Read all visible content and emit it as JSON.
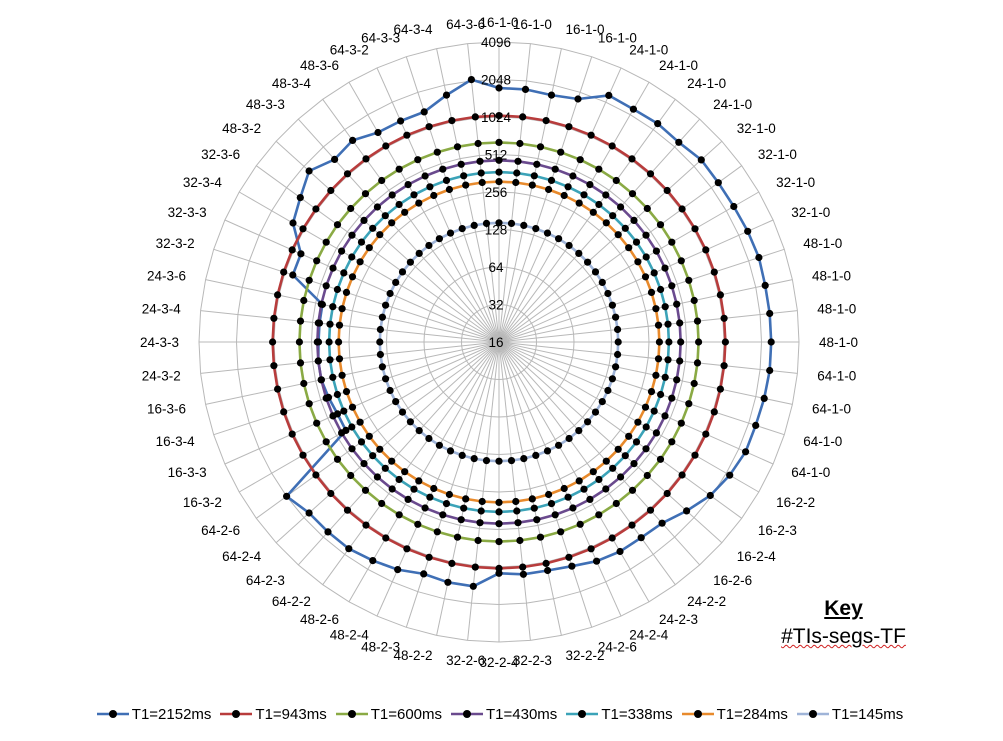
{
  "chart_data": {
    "type": "radar",
    "scale": "log2",
    "grid": true,
    "legend_position": "bottom",
    "radial_ticks": [
      16,
      32,
      64,
      128,
      256,
      512,
      1024,
      2048,
      4096
    ],
    "categories": [
      "16-1-0",
      "16-1-0",
      "16-1-0",
      "16-1-0",
      "24-1-0",
      "24-1-0",
      "24-1-0",
      "24-1-0",
      "32-1-0",
      "32-1-0",
      "32-1-0",
      "32-1-0",
      "48-1-0",
      "48-1-0",
      "48-1-0",
      "48-1-0",
      "64-1-0",
      "64-1-0",
      "64-1-0",
      "64-1-0",
      "16-2-2",
      "16-2-3",
      "16-2-4",
      "16-2-6",
      "24-2-2",
      "24-2-3",
      "24-2-4",
      "24-2-6",
      "32-2-2",
      "32-2-3",
      "32-2-4",
      "32-2-6",
      "48-2-2",
      "48-2-3",
      "48-2-4",
      "48-2-6",
      "64-2-2",
      "64-2-3",
      "64-2-4",
      "64-2-6",
      "16-3-2",
      "16-3-3",
      "16-3-4",
      "16-3-6",
      "24-3-2",
      "24-3-3",
      "24-3-4",
      "24-3-6",
      "32-3-2",
      "32-3-3",
      "32-3-4",
      "32-3-6",
      "48-3-2",
      "48-3-3",
      "48-3-4",
      "48-3-6",
      "64-3-2",
      "64-3-3",
      "64-3-4",
      "64-3-6"
    ],
    "series": [
      {
        "name": "T1=2152ms",
        "color": "#3f6fb5",
        "values": [
          1750,
          1750,
          1700,
          1800,
          2350,
          2300,
          2350,
          2300,
          2450,
          2400,
          2400,
          2450,
          2500,
          2450,
          2450,
          2450,
          2450,
          2400,
          2350,
          2350,
          2200,
          2000,
          1700,
          1450,
          1400,
          1400,
          1350,
          1250,
          1200,
          1200,
          1150,
          1500,
          1500,
          1450,
          1600,
          1700,
          1800,
          1800,
          1800,
          2050,
          420,
          420,
          440,
          460,
          460,
          450,
          450,
          450,
          880,
          880,
          1300,
          1500,
          1800,
          1500,
          1600,
          1400,
          1400,
          1400,
          1700,
          2100
        ]
      },
      {
        "name": "T1=943ms",
        "color": "#b83c3c",
        "values": [
          1050,
          1050,
          1050,
          1050,
          1050,
          1050,
          1050,
          1050,
          1050,
          1050,
          1050,
          1050,
          1050,
          1050,
          1050,
          1050,
          1050,
          1050,
          1050,
          1050,
          1050,
          1050,
          1050,
          1050,
          1050,
          1050,
          1050,
          1050,
          1050,
          1050,
          1050,
          1050,
          1050,
          1050,
          1050,
          1050,
          1050,
          1050,
          1050,
          1050,
          1050,
          1050,
          1050,
          1050,
          1050,
          1050,
          1050,
          1050,
          1050,
          1050,
          1050,
          1050,
          1050,
          1050,
          1050,
          1050,
          1050,
          1050,
          1050,
          1050
        ]
      },
      {
        "name": "T1=600ms",
        "color": "#8aaa44",
        "values": [
          640,
          640,
          640,
          640,
          640,
          640,
          640,
          640,
          640,
          640,
          640,
          640,
          640,
          640,
          640,
          640,
          640,
          640,
          640,
          640,
          640,
          640,
          640,
          640,
          640,
          640,
          640,
          640,
          640,
          640,
          640,
          640,
          640,
          640,
          640,
          640,
          640,
          640,
          640,
          640,
          640,
          640,
          640,
          640,
          640,
          640,
          640,
          640,
          640,
          640,
          640,
          640,
          640,
          640,
          640,
          640,
          640,
          640,
          640,
          640
        ]
      },
      {
        "name": "T1=430ms",
        "color": "#6a4a8e",
        "values": [
          460,
          460,
          460,
          460,
          460,
          460,
          460,
          460,
          460,
          460,
          460,
          460,
          460,
          460,
          460,
          460,
          460,
          460,
          460,
          460,
          460,
          460,
          460,
          460,
          460,
          460,
          460,
          460,
          460,
          460,
          460,
          460,
          460,
          460,
          460,
          460,
          460,
          460,
          460,
          460,
          460,
          460,
          460,
          460,
          460,
          460,
          460,
          460,
          460,
          460,
          460,
          460,
          460,
          460,
          460,
          460,
          460,
          460,
          460,
          460
        ]
      },
      {
        "name": "T1=338ms",
        "color": "#3ba3b8",
        "values": [
          370,
          370,
          370,
          370,
          370,
          370,
          370,
          370,
          370,
          370,
          370,
          370,
          370,
          370,
          370,
          370,
          370,
          370,
          370,
          370,
          370,
          370,
          370,
          370,
          370,
          370,
          370,
          370,
          370,
          370,
          370,
          370,
          370,
          370,
          370,
          370,
          370,
          370,
          370,
          370,
          370,
          370,
          370,
          370,
          370,
          370,
          370,
          370,
          370,
          370,
          370,
          370,
          370,
          370,
          370,
          370,
          370,
          370,
          370,
          370
        ]
      },
      {
        "name": "T1=284ms",
        "color": "#e88a2c",
        "values": [
          310,
          310,
          310,
          310,
          310,
          310,
          310,
          310,
          310,
          310,
          310,
          310,
          310,
          310,
          310,
          310,
          310,
          310,
          310,
          310,
          310,
          310,
          310,
          310,
          310,
          310,
          310,
          310,
          310,
          310,
          310,
          310,
          310,
          310,
          310,
          310,
          310,
          310,
          310,
          310,
          310,
          310,
          310,
          310,
          310,
          310,
          310,
          310,
          310,
          310,
          310,
          310,
          310,
          310,
          310,
          310,
          310,
          310,
          310,
          310
        ]
      },
      {
        "name": "T1=145ms",
        "color": "#9fb4d8",
        "values": [
          145,
          145,
          145,
          145,
          145,
          145,
          145,
          145,
          145,
          145,
          145,
          145,
          145,
          145,
          145,
          145,
          145,
          145,
          145,
          145,
          145,
          145,
          145,
          145,
          145,
          145,
          145,
          145,
          145,
          145,
          145,
          145,
          145,
          145,
          145,
          145,
          145,
          145,
          145,
          145,
          145,
          145,
          145,
          145,
          145,
          145,
          145,
          145,
          145,
          145,
          145,
          145,
          145,
          145,
          145,
          145,
          145,
          145,
          145,
          145
        ]
      }
    ]
  },
  "key": {
    "title": "Key",
    "subtitle": "#TIs-segs-TF"
  }
}
